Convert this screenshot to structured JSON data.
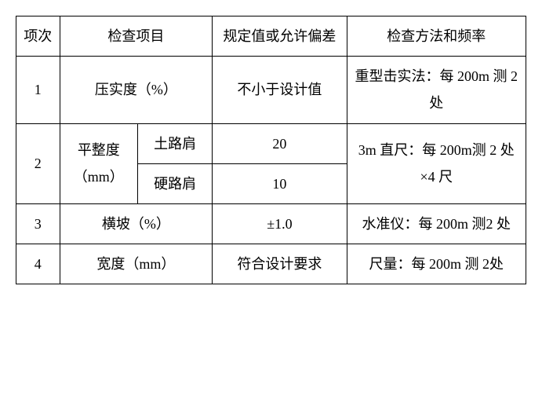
{
  "header": {
    "c0": "项次",
    "c1": "检查项目",
    "c2": "规定值或允许偏差",
    "c3": "检查方法和频率"
  },
  "rows": [
    {
      "num": "1",
      "item": "压实度（%）",
      "spec": "不小于设计值",
      "method": "重型击实法：每 200m 测 2 处"
    },
    {
      "num": "2",
      "item_main": "平整度（mm）",
      "item_sub1": "土路肩",
      "item_sub2": "硬路肩",
      "spec1": "20",
      "spec2": "10",
      "method": "3m 直尺：每 200m测 2 处×4 尺"
    },
    {
      "num": "3",
      "item": "横坡（%）",
      "spec": "±1.0",
      "method": "水准仪：每 200m 测2 处"
    },
    {
      "num": "4",
      "item": "宽度（mm）",
      "spec": "符合设计要求",
      "method": "尺量：每 200m 测 2处"
    }
  ]
}
